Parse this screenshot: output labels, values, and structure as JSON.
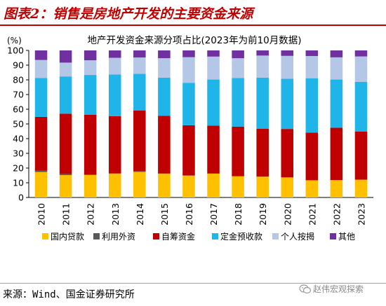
{
  "header": {
    "title": "图表2：销售是房地产开发的主要资金来源"
  },
  "chart_data": {
    "type": "bar",
    "stacked": true,
    "title": "地产开发资金来源分项占比(2023年为前10月数据)",
    "ylabel": "(%)",
    "xlabel": "",
    "ylim": [
      0,
      100
    ],
    "yticks": [
      0,
      10,
      20,
      30,
      40,
      50,
      60,
      70,
      80,
      90,
      100
    ],
    "grid": false,
    "legend_position": "bottom",
    "categories": [
      "2010",
      "2011",
      "2012",
      "2013",
      "2014",
      "2015",
      "2016",
      "2017",
      "2018",
      "2019",
      "2020",
      "2021",
      "2022",
      "2023"
    ],
    "series": [
      {
        "name": "国内贷款",
        "color": "#ffc000",
        "values": [
          17.3,
          15.2,
          15.3,
          16.1,
          17.4,
          16.1,
          14.9,
          16.2,
          14.4,
          14.1,
          13.6,
          11.7,
          11.8,
          12.1
        ]
      },
      {
        "name": "利用外资",
        "color": "#595959",
        "values": [
          1.0,
          0.8,
          0.4,
          0.4,
          0.5,
          0.2,
          0.1,
          0.1,
          0.1,
          0.1,
          0.1,
          0.0,
          0.0,
          0.0
        ]
      },
      {
        "name": "自筹资金",
        "color": "#c00000",
        "values": [
          36.5,
          41.0,
          40.5,
          38.8,
          41.3,
          39.2,
          34.1,
          32.6,
          33.7,
          32.6,
          32.9,
          32.4,
          35.6,
          32.8
        ]
      },
      {
        "name": "定金预收款",
        "color": "#1fb5e8",
        "values": [
          26.4,
          25.3,
          27.1,
          28.3,
          24.9,
          26.0,
          28.9,
          31.3,
          33.1,
          34.7,
          34.1,
          37.0,
          32.8,
          33.7
        ]
      },
      {
        "name": "个人按揭",
        "color": "#b4c7e7",
        "values": [
          12.3,
          9.4,
          10.0,
          11.4,
          11.1,
          13.2,
          17.4,
          15.6,
          13.4,
          15.0,
          15.6,
          15.1,
          15.1,
          17.3
        ]
      },
      {
        "name": "其他",
        "color": "#7030a0",
        "values": [
          6.5,
          8.3,
          6.7,
          5.0,
          4.8,
          5.3,
          4.6,
          4.2,
          5.3,
          3.5,
          3.7,
          3.8,
          4.7,
          4.1
        ]
      }
    ]
  },
  "footer": {
    "source": "来源：Wind、国金证券研究所"
  },
  "watermark": {
    "text": "赵伟宏观探索",
    "icon": "wechat-icon"
  }
}
